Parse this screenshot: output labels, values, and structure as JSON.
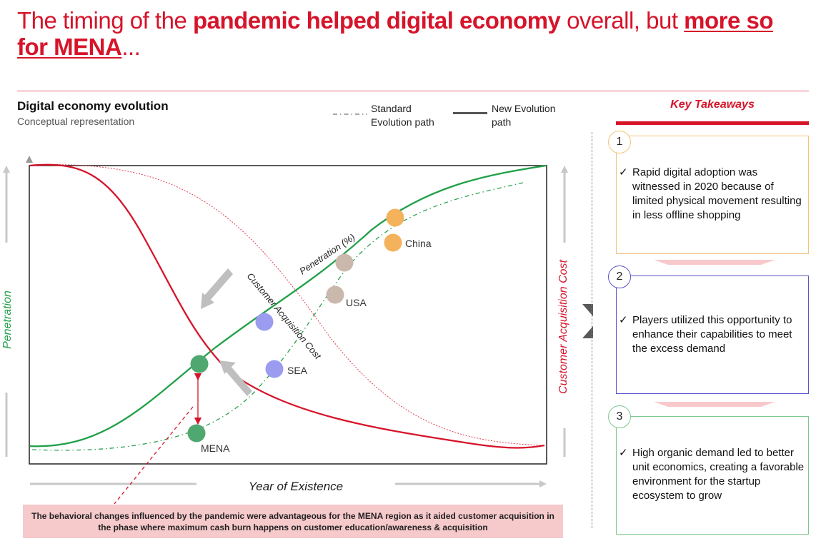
{
  "title": {
    "part1": "The timing of the ",
    "part2": "pandemic helped digital economy",
    "part3": " overall, but ",
    "part4": "more so for MENA",
    "part5": "..."
  },
  "section": {
    "title": "Digital economy evolution",
    "subtitle": "Conceptual  representation"
  },
  "legend": {
    "standard": [
      "Standard",
      "Evolution  path"
    ],
    "new": [
      "New Evolution",
      "path"
    ]
  },
  "diagram": {
    "y_left_label": "Penetration",
    "y_right_label": "Customer Acquisition Cost",
    "x_label": "Year of Existence",
    "penetration_curve_label": "Penetration (%)",
    "cac_curve_label": "Customer Acquisition Cost",
    "points": [
      "China",
      "USA",
      "SEA",
      "MENA"
    ]
  },
  "takeaways": {
    "title": "Key Takeaways",
    "check": "✓",
    "items": [
      {
        "num": "1",
        "text": "Rapid digital adoption was witnessed in 2020 because of limited physical movement resulting in less offline shopping"
      },
      {
        "num": "2",
        "text": "Players utilized this opportunity to enhance their capabilities to meet the excess  demand"
      },
      {
        "num": "3",
        "text": "High organic demand led to better unit economics, creating a favorable environment for the startup ecosystem to grow"
      }
    ]
  },
  "caption": "The behavioral changes influenced by the pandemic were advantageous for the MENA region as it aided customer acquisition in the phase where maximum cash burn happens on customer education/awareness & acquisition",
  "colors": {
    "accent": "#d6142a",
    "green": "#24a04a",
    "orange": "#f5b25c",
    "taupe": "#cbb8ad",
    "lavender": "#9b9cf0",
    "mena": "#4fa86f",
    "box1": "#f4c27a",
    "box2": "#5a55c9",
    "box3": "#7cc88e"
  }
}
